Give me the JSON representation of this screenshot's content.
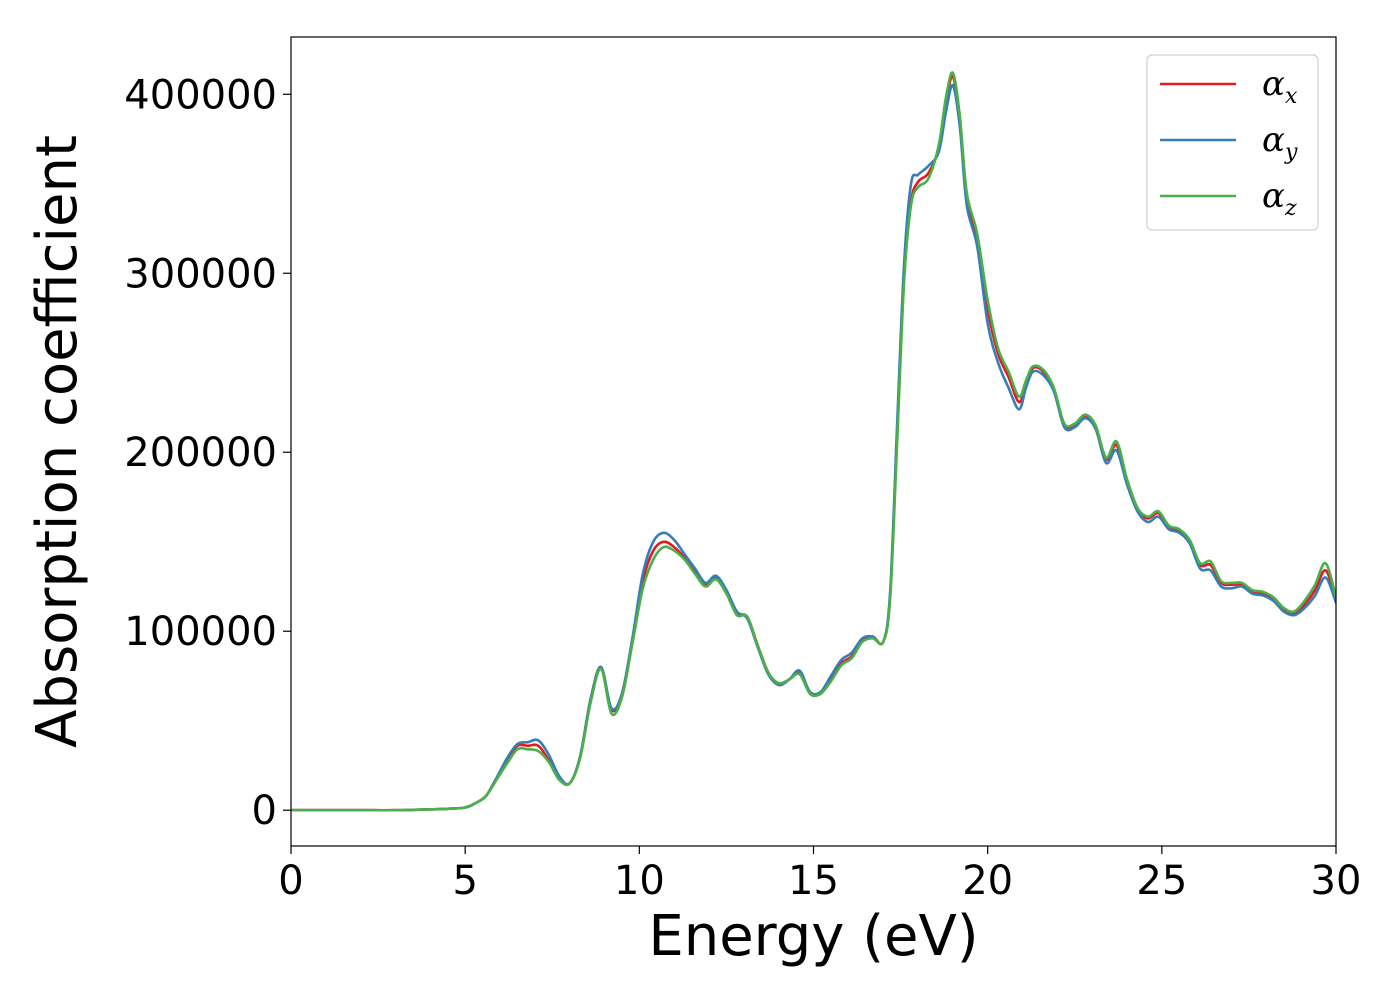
{
  "chart_data": {
    "type": "line",
    "title": "",
    "xlabel": "Energy (eV)",
    "ylabel": "Absorption coefficient",
    "xlim": [
      0,
      30
    ],
    "ylim": [
      -20000,
      432000
    ],
    "xticks": [
      0,
      5,
      10,
      15,
      20,
      25,
      30
    ],
    "yticks": [
      0,
      100000,
      200000,
      300000,
      400000
    ],
    "xtick_labels": [
      "0",
      "5",
      "10",
      "15",
      "20",
      "25",
      "30"
    ],
    "ytick_labels": [
      "0",
      "100000",
      "200000",
      "300000",
      "400000"
    ],
    "grid": false,
    "legend_position": "top-right",
    "x": [
      0,
      1,
      2,
      3,
      4,
      4.5,
      5,
      5.3,
      5.6,
      5.9,
      6.2,
      6.5,
      6.8,
      7.1,
      7.4,
      7.7,
      8.0,
      8.3,
      8.6,
      8.9,
      9.2,
      9.5,
      9.8,
      10.1,
      10.4,
      10.7,
      11.0,
      11.3,
      11.6,
      11.9,
      12.2,
      12.5,
      12.8,
      13.1,
      13.4,
      13.7,
      14.0,
      14.3,
      14.6,
      14.9,
      15.2,
      15.5,
      15.8,
      16.1,
      16.4,
      16.7,
      17.0,
      17.2,
      17.4,
      17.6,
      17.8,
      18.0,
      18.3,
      18.6,
      18.8,
      19.0,
      19.2,
      19.4,
      19.7,
      20.0,
      20.3,
      20.6,
      20.9,
      21.1,
      21.3,
      21.6,
      21.9,
      22.2,
      22.5,
      22.8,
      23.1,
      23.4,
      23.7,
      24.0,
      24.3,
      24.6,
      24.9,
      25.2,
      25.5,
      25.8,
      26.1,
      26.4,
      26.7,
      27.0,
      27.3,
      27.6,
      27.9,
      28.2,
      28.5,
      28.8,
      29.1,
      29.4,
      29.7,
      30.0
    ],
    "series": [
      {
        "name": "α_x",
        "label_main": "α",
        "label_sub": "x",
        "color": "#e41a1c",
        "values": [
          0,
          0,
          0,
          0,
          500,
          800,
          1500,
          4000,
          8000,
          18000,
          28000,
          36000,
          36000,
          36000,
          28000,
          18000,
          15000,
          30000,
          62000,
          80000,
          56000,
          65000,
          95000,
          128000,
          145000,
          150000,
          147000,
          141000,
          133000,
          126000,
          130000,
          122000,
          110000,
          108000,
          92000,
          77000,
          70000,
          73000,
          77000,
          66000,
          65000,
          73000,
          82000,
          86000,
          95000,
          97000,
          94000,
          120000,
          210000,
          300000,
          340000,
          351000,
          356000,
          370000,
          395000,
          410000,
          385000,
          342000,
          320000,
          280000,
          255000,
          242000,
          228000,
          238000,
          247000,
          245000,
          235000,
          215000,
          215000,
          220000,
          214000,
          196000,
          204000,
          183000,
          168000,
          163000,
          166000,
          158000,
          156000,
          150000,
          137000,
          137000,
          127000,
          126000,
          126000,
          122000,
          121000,
          118000,
          112000,
          110000,
          115000,
          123000,
          134000,
          118000
        ]
      },
      {
        "name": "α_y",
        "label_main": "α",
        "label_sub": "y",
        "color": "#377eb8",
        "values": [
          0,
          0,
          0,
          0,
          500,
          800,
          1500,
          4000,
          8000,
          18000,
          29000,
          37000,
          38000,
          39000,
          31000,
          19000,
          15000,
          30000,
          62000,
          80000,
          57000,
          65000,
          96000,
          132000,
          150000,
          155000,
          151000,
          143000,
          135000,
          127000,
          131000,
          123000,
          111000,
          107000,
          91000,
          76000,
          70000,
          73000,
          78000,
          66000,
          66000,
          75000,
          84000,
          88000,
          96000,
          97000,
          94000,
          122000,
          215000,
          305000,
          350000,
          355000,
          360000,
          368000,
          390000,
          405000,
          382000,
          338000,
          315000,
          272000,
          250000,
          236000,
          224000,
          236000,
          245000,
          243000,
          234000,
          214000,
          214000,
          219000,
          213000,
          194000,
          201000,
          182000,
          167000,
          161000,
          164000,
          157000,
          155000,
          149000,
          135000,
          134000,
          125000,
          124000,
          125000,
          121000,
          120000,
          117000,
          111000,
          109000,
          113000,
          120000,
          130000,
          116000
        ]
      },
      {
        "name": "α_z",
        "label_main": "α",
        "label_sub": "z",
        "color": "#4daf4a",
        "values": [
          0,
          0,
          0,
          0,
          500,
          800,
          1500,
          4000,
          8000,
          17000,
          26000,
          34000,
          34000,
          33000,
          27000,
          17000,
          15000,
          29000,
          60000,
          79000,
          54000,
          63000,
          93000,
          124000,
          140000,
          147000,
          145000,
          140000,
          132000,
          125000,
          129000,
          121000,
          109000,
          108000,
          92000,
          77000,
          71000,
          73000,
          76000,
          65000,
          65000,
          72000,
          81000,
          85000,
          94000,
          96000,
          94000,
          118000,
          205000,
          295000,
          338000,
          348000,
          353000,
          372000,
          398000,
          412000,
          388000,
          345000,
          322000,
          285000,
          258000,
          245000,
          231000,
          240000,
          248000,
          246000,
          236000,
          216000,
          216000,
          221000,
          215000,
          197000,
          206000,
          185000,
          169000,
          164000,
          167000,
          159000,
          157000,
          151000,
          138000,
          139000,
          128000,
          127000,
          127000,
          123000,
          122000,
          119000,
          113000,
          111000,
          117000,
          126000,
          138000,
          119000
        ]
      }
    ]
  }
}
